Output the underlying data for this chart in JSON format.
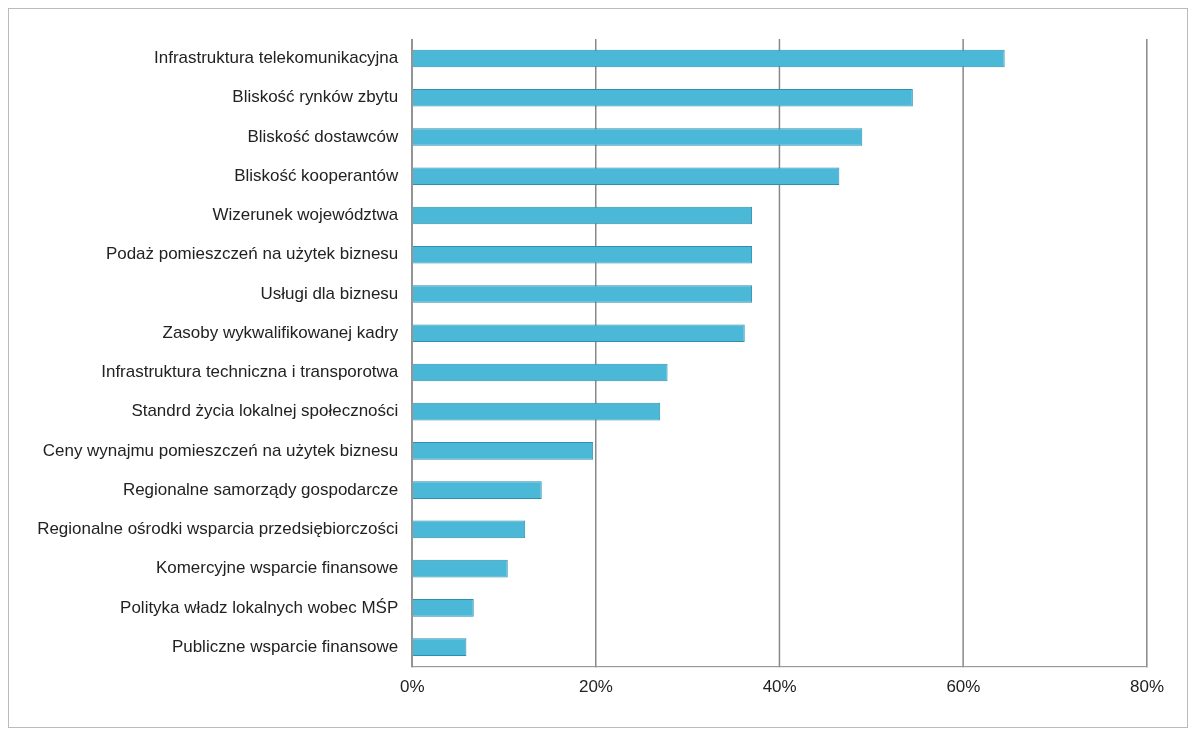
{
  "chart_data": {
    "type": "bar",
    "orientation": "horizontal",
    "categories": [
      "Infrastruktura telekomunikacyjna",
      "Bliskość rynków zbytu",
      "Bliskość dostawców",
      "Bliskość kooperantów",
      "Wizerunek województwa",
      "Podaż pomieszczeń na użytek biznesu",
      "Usługi dla biznesu",
      "Zasoby wykwalifikowanej kadry",
      "Infrastruktura techniczna i transporotwa",
      "Standrd życia lokalnej społeczności",
      "Ceny wynajmu pomieszczeń na użytek biznesu",
      "Regionalne samorządy gospodarcze",
      "Regionalne ośrodki wsparcia przedsiębiorczości",
      "Komercyjne wsparcie finansowe",
      "Polityka władz lokalnych wobec MŚP",
      "Publiczne wsparcie finansowe"
    ],
    "values": [
      0.645,
      0.545,
      0.49,
      0.465,
      0.37,
      0.37,
      0.37,
      0.362,
      0.278,
      0.27,
      0.197,
      0.141,
      0.123,
      0.104,
      0.067,
      0.059
    ],
    "color": "#4bb8d8",
    "xlim": [
      0,
      0.8
    ],
    "xticks": [
      {
        "value": 0,
        "label": "0%"
      },
      {
        "value": 0.2,
        "label": "20%"
      },
      {
        "value": 0.4,
        "label": "40%"
      },
      {
        "value": 0.6,
        "label": "60%"
      },
      {
        "value": 0.8,
        "label": "80%"
      }
    ],
    "grid": "x",
    "legend": false
  }
}
